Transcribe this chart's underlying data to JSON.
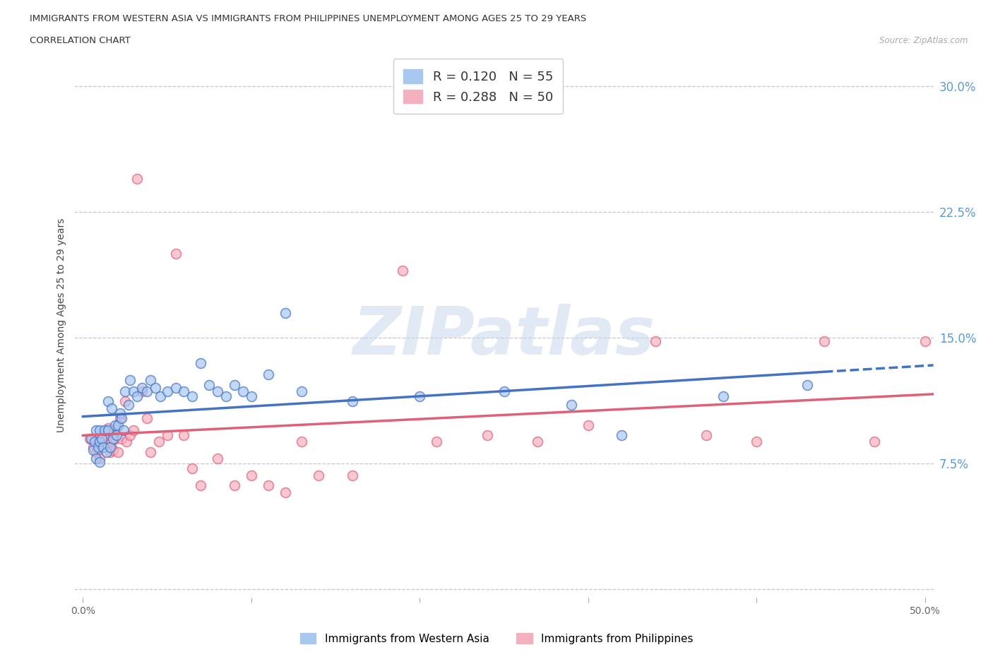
{
  "title_line1": "IMMIGRANTS FROM WESTERN ASIA VS IMMIGRANTS FROM PHILIPPINES UNEMPLOYMENT AMONG AGES 25 TO 29 YEARS",
  "title_line2": "CORRELATION CHART",
  "source": "Source: ZipAtlas.com",
  "ylabel": "Unemployment Among Ages 25 to 29 years",
  "xlim": [
    -0.005,
    0.505
  ],
  "ylim": [
    -0.005,
    0.32
  ],
  "yticks": [
    0.0,
    0.075,
    0.15,
    0.225,
    0.3
  ],
  "ytick_labels": [
    "",
    "7.5%",
    "15.0%",
    "22.5%",
    "30.0%"
  ],
  "xticks": [
    0.0,
    0.1,
    0.2,
    0.3,
    0.4,
    0.5
  ],
  "xtick_labels": [
    "0.0%",
    "",
    "",
    "",
    "",
    "50.0%"
  ],
  "color_blue": "#A8C8F0",
  "color_pink": "#F5B0C0",
  "line_blue": "#4472C4",
  "line_pink": "#E06078",
  "legend_r1": "R = 0.120   N = 55",
  "legend_r2": "R = 0.288   N = 50",
  "legend_label_blue": "Immigrants from Western Asia",
  "legend_label_pink": "Immigrants from Philippines",
  "western_asia_x": [
    0.005,
    0.006,
    0.007,
    0.008,
    0.008,
    0.009,
    0.01,
    0.01,
    0.01,
    0.011,
    0.012,
    0.013,
    0.014,
    0.015,
    0.015,
    0.016,
    0.017,
    0.018,
    0.019,
    0.02,
    0.021,
    0.022,
    0.023,
    0.024,
    0.025,
    0.027,
    0.028,
    0.03,
    0.032,
    0.035,
    0.038,
    0.04,
    0.043,
    0.046,
    0.05,
    0.055,
    0.06,
    0.065,
    0.07,
    0.075,
    0.08,
    0.085,
    0.09,
    0.095,
    0.1,
    0.11,
    0.12,
    0.13,
    0.16,
    0.2,
    0.25,
    0.29,
    0.32,
    0.38,
    0.43
  ],
  "western_asia_y": [
    0.09,
    0.083,
    0.088,
    0.095,
    0.078,
    0.085,
    0.095,
    0.088,
    0.076,
    0.09,
    0.085,
    0.095,
    0.082,
    0.112,
    0.095,
    0.085,
    0.108,
    0.09,
    0.098,
    0.092,
    0.098,
    0.105,
    0.102,
    0.095,
    0.118,
    0.11,
    0.125,
    0.118,
    0.115,
    0.12,
    0.118,
    0.125,
    0.12,
    0.115,
    0.118,
    0.12,
    0.118,
    0.115,
    0.135,
    0.122,
    0.118,
    0.115,
    0.122,
    0.118,
    0.115,
    0.128,
    0.165,
    0.118,
    0.112,
    0.115,
    0.118,
    0.11,
    0.092,
    0.115,
    0.122
  ],
  "philippines_x": [
    0.004,
    0.006,
    0.008,
    0.009,
    0.01,
    0.012,
    0.013,
    0.014,
    0.015,
    0.016,
    0.017,
    0.018,
    0.019,
    0.02,
    0.021,
    0.022,
    0.023,
    0.025,
    0.026,
    0.028,
    0.03,
    0.032,
    0.035,
    0.038,
    0.04,
    0.045,
    0.05,
    0.055,
    0.06,
    0.065,
    0.07,
    0.08,
    0.09,
    0.1,
    0.11,
    0.12,
    0.13,
    0.14,
    0.16,
    0.19,
    0.21,
    0.24,
    0.27,
    0.3,
    0.34,
    0.37,
    0.4,
    0.44,
    0.47,
    0.5
  ],
  "philippines_y": [
    0.09,
    0.085,
    0.082,
    0.088,
    0.078,
    0.092,
    0.085,
    0.09,
    0.096,
    0.082,
    0.088,
    0.083,
    0.09,
    0.096,
    0.082,
    0.102,
    0.09,
    0.112,
    0.088,
    0.092,
    0.095,
    0.245,
    0.118,
    0.102,
    0.082,
    0.088,
    0.092,
    0.2,
    0.092,
    0.072,
    0.062,
    0.078,
    0.062,
    0.068,
    0.062,
    0.058,
    0.088,
    0.068,
    0.068,
    0.19,
    0.088,
    0.092,
    0.088,
    0.098,
    0.148,
    0.092,
    0.088,
    0.148,
    0.088,
    0.148
  ],
  "watermark_text": "ZIPatlas",
  "background_color": "#FFFFFF",
  "grid_color": "#C0C0CC",
  "tick_color": "#5B9BD5",
  "title_color": "#333333",
  "source_color": "#AAAAAA"
}
